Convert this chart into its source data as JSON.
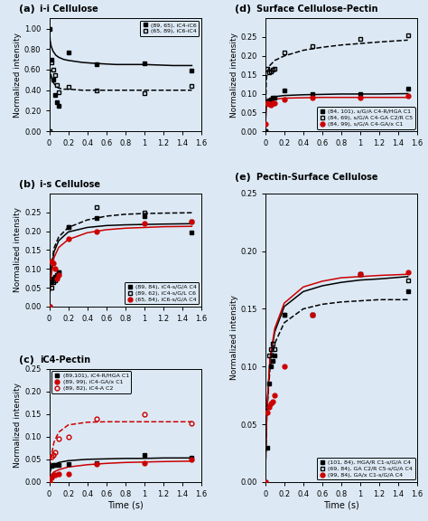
{
  "panel_a": {
    "title": "i-i Cellulose",
    "label": "(a)",
    "series": [
      {
        "label": "(89, 65), iC4-iC6",
        "color": "black",
        "marker": "s",
        "fillstyle": "full",
        "linestyle": "-",
        "x_data": [
          0.0,
          0.02,
          0.04,
          0.06,
          0.08,
          0.1,
          0.2,
          0.5,
          1.0,
          1.5
        ],
        "y_data": [
          1.0,
          0.7,
          0.5,
          0.35,
          0.28,
          0.25,
          0.77,
          0.65,
          0.66,
          0.59
        ],
        "fit_x": [
          0.001,
          0.01,
          0.02,
          0.04,
          0.07,
          0.1,
          0.15,
          0.2,
          0.35,
          0.5,
          0.7,
          1.0,
          1.3,
          1.5
        ],
        "fit_y": [
          1.0,
          0.88,
          0.83,
          0.78,
          0.74,
          0.72,
          0.7,
          0.69,
          0.67,
          0.66,
          0.65,
          0.65,
          0.64,
          0.64
        ]
      },
      {
        "label": "(65, 89), iC6-iC4",
        "color": "black",
        "marker": "s",
        "fillstyle": "none",
        "linestyle": "--",
        "x_data": [
          0.0,
          0.02,
          0.04,
          0.06,
          0.08,
          0.1,
          0.2,
          0.5,
          1.0,
          1.5
        ],
        "y_data": [
          0.0,
          0.67,
          0.6,
          0.55,
          0.45,
          0.38,
          0.43,
          0.4,
          0.37,
          0.44
        ],
        "fit_x": [
          0.001,
          0.01,
          0.02,
          0.04,
          0.07,
          0.1,
          0.15,
          0.2,
          0.35,
          0.5,
          0.7,
          1.0,
          1.3,
          1.5
        ],
        "fit_y": [
          0.0,
          0.6,
          0.54,
          0.48,
          0.44,
          0.42,
          0.41,
          0.41,
          0.4,
          0.4,
          0.4,
          0.4,
          0.4,
          0.4
        ]
      }
    ],
    "ylim": [
      0.0,
      1.1
    ],
    "yticks": [
      0.0,
      0.2,
      0.4,
      0.6,
      0.8,
      1.0
    ],
    "xlim": [
      0.0,
      1.6
    ],
    "xticks": [
      0.0,
      0.2,
      0.4,
      0.6,
      0.8,
      1.0,
      1.2,
      1.4,
      1.6
    ],
    "legend_loc": "upper right"
  },
  "panel_b": {
    "title": "i-s Cellulose",
    "label": "(b)",
    "series": [
      {
        "label": "(89, 84), iC4-s/G/A C4",
        "color": "black",
        "marker": "s",
        "fillstyle": "full",
        "linestyle": "-",
        "x_data": [
          0.0,
          0.02,
          0.04,
          0.06,
          0.08,
          0.1,
          0.2,
          0.5,
          1.0,
          1.5
        ],
        "y_data": [
          0.0,
          0.065,
          0.075,
          0.08,
          0.085,
          0.09,
          0.21,
          0.235,
          0.24,
          0.197
        ],
        "fit_x": [
          0.001,
          0.01,
          0.02,
          0.05,
          0.1,
          0.2,
          0.4,
          0.6,
          0.8,
          1.0,
          1.2,
          1.5
        ],
        "fit_y": [
          0.0,
          0.055,
          0.09,
          0.145,
          0.175,
          0.198,
          0.21,
          0.215,
          0.217,
          0.218,
          0.219,
          0.22
        ]
      },
      {
        "label": "(89, 62), iC4-s/G/L C6",
        "color": "black",
        "marker": "s",
        "fillstyle": "none",
        "linestyle": "--",
        "x_data": [
          0.0,
          0.02,
          0.04,
          0.06,
          0.08,
          0.1,
          0.2,
          0.5,
          1.0,
          1.5
        ],
        "y_data": [
          0.0,
          0.05,
          0.065,
          0.07,
          0.08,
          0.09,
          0.21,
          0.265,
          0.25,
          0.225
        ],
        "fit_x": [
          0.001,
          0.01,
          0.02,
          0.05,
          0.1,
          0.2,
          0.4,
          0.6,
          0.8,
          1.0,
          1.2,
          1.5
        ],
        "fit_y": [
          0.0,
          0.06,
          0.1,
          0.155,
          0.185,
          0.21,
          0.23,
          0.24,
          0.245,
          0.247,
          0.248,
          0.249
        ]
      },
      {
        "label": "(65, 84), iC6-s/G/A C4",
        "color": "#cc0000",
        "marker": "o",
        "fillstyle": "full",
        "linestyle": "-",
        "x_data": [
          0.0,
          0.02,
          0.04,
          0.06,
          0.08,
          0.1,
          0.2,
          0.5,
          1.0,
          1.5
        ],
        "y_data": [
          0.0,
          0.12,
          0.115,
          0.1,
          0.075,
          0.085,
          0.18,
          0.2,
          0.22,
          0.225
        ],
        "fit_x": [
          0.001,
          0.01,
          0.02,
          0.05,
          0.1,
          0.2,
          0.4,
          0.6,
          0.8,
          1.0,
          1.2,
          1.5
        ],
        "fit_y": [
          0.0,
          0.05,
          0.08,
          0.13,
          0.157,
          0.178,
          0.196,
          0.204,
          0.208,
          0.21,
          0.212,
          0.213
        ]
      }
    ],
    "ylim": [
      0.0,
      0.3
    ],
    "yticks": [
      0.0,
      0.05,
      0.1,
      0.15,
      0.2,
      0.25
    ],
    "xlim": [
      0.0,
      1.6
    ],
    "xticks": [
      0.0,
      0.2,
      0.4,
      0.6,
      0.8,
      1.0,
      1.2,
      1.4,
      1.6
    ],
    "legend_loc": "lower right"
  },
  "panel_c": {
    "title": "iC4-Pectin",
    "label": "(c)",
    "series": [
      {
        "label": "(89,101), iC4-R/HGA C1",
        "color": "black",
        "marker": "s",
        "fillstyle": "full",
        "linestyle": "-",
        "x_data": [
          0.0,
          0.02,
          0.04,
          0.06,
          0.1,
          0.2,
          0.5,
          1.0,
          1.5
        ],
        "y_data": [
          0.01,
          0.035,
          0.038,
          0.037,
          0.038,
          0.04,
          0.042,
          0.06,
          0.053
        ],
        "fit_x": [
          0.001,
          0.01,
          0.02,
          0.05,
          0.1,
          0.2,
          0.4,
          0.6,
          0.8,
          1.0,
          1.2,
          1.5
        ],
        "fit_y": [
          0.01,
          0.023,
          0.03,
          0.038,
          0.043,
          0.047,
          0.05,
          0.051,
          0.052,
          0.052,
          0.053,
          0.053
        ]
      },
      {
        "label": "(89, 99), iC4-GA/x C1",
        "color": "#cc0000",
        "marker": "o",
        "fillstyle": "full",
        "linestyle": "-",
        "x_data": [
          0.0,
          0.02,
          0.04,
          0.06,
          0.1,
          0.2,
          0.5,
          1.0,
          1.5
        ],
        "y_data": [
          0.0,
          0.01,
          0.015,
          0.015,
          0.018,
          0.018,
          0.04,
          0.042,
          0.05
        ],
        "fit_x": [
          0.001,
          0.01,
          0.02,
          0.05,
          0.1,
          0.2,
          0.4,
          0.6,
          0.8,
          1.0,
          1.2,
          1.5
        ],
        "fit_y": [
          0.0,
          0.01,
          0.015,
          0.022,
          0.027,
          0.033,
          0.038,
          0.041,
          0.043,
          0.044,
          0.045,
          0.046
        ]
      },
      {
        "label": "(89, 82), iC4-A C2",
        "color": "#cc0000",
        "marker": "o",
        "fillstyle": "none",
        "linestyle": "--",
        "x_data": [
          0.0,
          0.02,
          0.04,
          0.06,
          0.1,
          0.2,
          0.5,
          1.0,
          1.5
        ],
        "y_data": [
          0.0,
          0.055,
          0.06,
          0.065,
          0.095,
          0.1,
          0.14,
          0.15,
          0.13
        ],
        "fit_x": [
          0.001,
          0.01,
          0.02,
          0.05,
          0.1,
          0.2,
          0.4,
          0.6,
          0.8,
          1.0,
          1.2,
          1.5
        ],
        "fit_y": [
          0.0,
          0.035,
          0.055,
          0.088,
          0.11,
          0.126,
          0.132,
          0.133,
          0.133,
          0.133,
          0.133,
          0.133
        ]
      }
    ],
    "ylim": [
      0.0,
      0.25
    ],
    "yticks": [
      0.0,
      0.05,
      0.1,
      0.15,
      0.2,
      0.25
    ],
    "xlim": [
      0.0,
      1.6
    ],
    "xticks": [
      0.0,
      0.2,
      0.4,
      0.6,
      0.8,
      1.0,
      1.2,
      1.4,
      1.6
    ],
    "legend_loc": "upper left",
    "xlabel": "Time (s)"
  },
  "panel_d": {
    "title": "Surface Cellulose-Pectin",
    "label": "(d)",
    "series": [
      {
        "label": "(84, 101), s/G/A C4-R/HGA C1",
        "color": "black",
        "marker": "s",
        "fillstyle": "full",
        "linestyle": "-",
        "x_data": [
          0.0,
          0.02,
          0.04,
          0.06,
          0.08,
          0.1,
          0.2,
          0.5,
          1.0,
          1.5
        ],
        "y_data": [
          0.0,
          0.08,
          0.082,
          0.085,
          0.09,
          0.09,
          0.108,
          0.1,
          0.1,
          0.113
        ],
        "fit_x": [
          0.001,
          0.01,
          0.02,
          0.05,
          0.1,
          0.2,
          0.4,
          0.6,
          0.8,
          1.0,
          1.2,
          1.5
        ],
        "fit_y": [
          0.0,
          0.065,
          0.078,
          0.087,
          0.092,
          0.095,
          0.097,
          0.098,
          0.099,
          0.099,
          0.099,
          0.1
        ]
      },
      {
        "label": "(84, 69), s/G/A C4-GA C2/R C5",
        "color": "black",
        "marker": "s",
        "fillstyle": "none",
        "linestyle": "--",
        "x_data": [
          0.0,
          0.02,
          0.04,
          0.06,
          0.08,
          0.1,
          0.2,
          0.5,
          1.0,
          1.5
        ],
        "y_data": [
          0.0,
          0.165,
          0.157,
          0.16,
          0.163,
          0.165,
          0.21,
          0.225,
          0.245,
          0.255
        ],
        "fit_x": [
          0.001,
          0.01,
          0.02,
          0.05,
          0.1,
          0.2,
          0.4,
          0.6,
          0.8,
          1.0,
          1.2,
          1.5
        ],
        "fit_y": [
          0.0,
          0.13,
          0.155,
          0.175,
          0.188,
          0.2,
          0.215,
          0.223,
          0.229,
          0.233,
          0.237,
          0.242
        ]
      },
      {
        "label": "(84, 99), s/G/A C4-GA/x C1",
        "color": "#cc0000",
        "marker": "o",
        "fillstyle": "full",
        "linestyle": "-",
        "x_data": [
          0.0,
          0.02,
          0.04,
          0.06,
          0.08,
          0.1,
          0.2,
          0.5,
          1.0,
          1.5
        ],
        "y_data": [
          0.02,
          0.075,
          0.072,
          0.07,
          0.075,
          0.075,
          0.085,
          0.09,
          0.09,
          0.093
        ],
        "fit_x": [
          0.001,
          0.01,
          0.02,
          0.05,
          0.1,
          0.2,
          0.4,
          0.6,
          0.8,
          1.0,
          1.2,
          1.5
        ],
        "fit_y": [
          0.02,
          0.063,
          0.073,
          0.081,
          0.085,
          0.088,
          0.089,
          0.09,
          0.09,
          0.09,
          0.09,
          0.09
        ]
      }
    ],
    "ylim": [
      0.0,
      0.3
    ],
    "yticks": [
      0.0,
      0.05,
      0.1,
      0.15,
      0.2,
      0.25
    ],
    "xlim": [
      0.0,
      1.6
    ],
    "xticks": [
      0.0,
      0.2,
      0.4,
      0.6,
      0.8,
      1.0,
      1.2,
      1.4,
      1.6
    ],
    "legend_loc": "lower right"
  },
  "panel_e": {
    "title": "Pectin-Surface Cellulose",
    "label": "(e)",
    "series": [
      {
        "label": "(101, 84), HGA/R C1-s/G/A C4",
        "color": "black",
        "marker": "s",
        "fillstyle": "full",
        "linestyle": "-",
        "x_data": [
          0.0,
          0.02,
          0.04,
          0.06,
          0.08,
          0.1,
          0.2,
          0.5,
          1.0,
          1.5
        ],
        "y_data": [
          0.0,
          0.03,
          0.085,
          0.1,
          0.105,
          0.11,
          0.145,
          0.145,
          0.18,
          0.165
        ],
        "fit_x": [
          0.001,
          0.01,
          0.02,
          0.05,
          0.1,
          0.2,
          0.4,
          0.6,
          0.8,
          1.0,
          1.2,
          1.5
        ],
        "fit_y": [
          0.0,
          0.04,
          0.065,
          0.105,
          0.13,
          0.152,
          0.165,
          0.17,
          0.173,
          0.175,
          0.176,
          0.178
        ]
      },
      {
        "label": "(69, 84), GA C2/R C5-s/G/A C4",
        "color": "black",
        "marker": "s",
        "fillstyle": "none",
        "linestyle": "--",
        "x_data": [
          0.0,
          0.02,
          0.04,
          0.06,
          0.08,
          0.1,
          0.2,
          0.5,
          1.0,
          1.5
        ],
        "y_data": [
          0.0,
          0.065,
          0.11,
          0.115,
          0.12,
          0.115,
          0.145,
          0.145,
          0.18,
          0.175
        ],
        "fit_x": [
          0.001,
          0.01,
          0.02,
          0.05,
          0.1,
          0.2,
          0.4,
          0.6,
          0.8,
          1.0,
          1.2,
          1.5
        ],
        "fit_y": [
          0.0,
          0.04,
          0.063,
          0.098,
          0.12,
          0.138,
          0.15,
          0.154,
          0.156,
          0.157,
          0.158,
          0.158
        ]
      },
      {
        "label": "(99, 84), GA/x C1-s/G/A C4",
        "color": "#cc0000",
        "marker": "o",
        "fillstyle": "full",
        "linestyle": "-",
        "x_data": [
          0.0,
          0.02,
          0.04,
          0.06,
          0.08,
          0.1,
          0.2,
          0.5,
          1.0,
          1.5
        ],
        "y_data": [
          0.0,
          0.06,
          0.065,
          0.068,
          0.07,
          0.075,
          0.1,
          0.145,
          0.18,
          0.182
        ],
        "fit_x": [
          0.001,
          0.01,
          0.02,
          0.05,
          0.1,
          0.2,
          0.4,
          0.6,
          0.8,
          1.0,
          1.2,
          1.5
        ],
        "fit_y": [
          0.0,
          0.042,
          0.067,
          0.107,
          0.133,
          0.155,
          0.169,
          0.174,
          0.177,
          0.178,
          0.179,
          0.18
        ]
      }
    ],
    "ylim": [
      0.0,
      0.25
    ],
    "yticks": [
      0.0,
      0.05,
      0.1,
      0.15,
      0.2,
      0.25
    ],
    "xlim": [
      0.0,
      1.6
    ],
    "xticks": [
      0.0,
      0.2,
      0.4,
      0.6,
      0.8,
      1.0,
      1.2,
      1.4,
      1.6
    ],
    "legend_loc": "lower right",
    "xlabel": "Time (s)"
  },
  "ylabel": "Normalized intensity",
  "xlabel": "Time (s)",
  "bg_color": "#dce9f5"
}
